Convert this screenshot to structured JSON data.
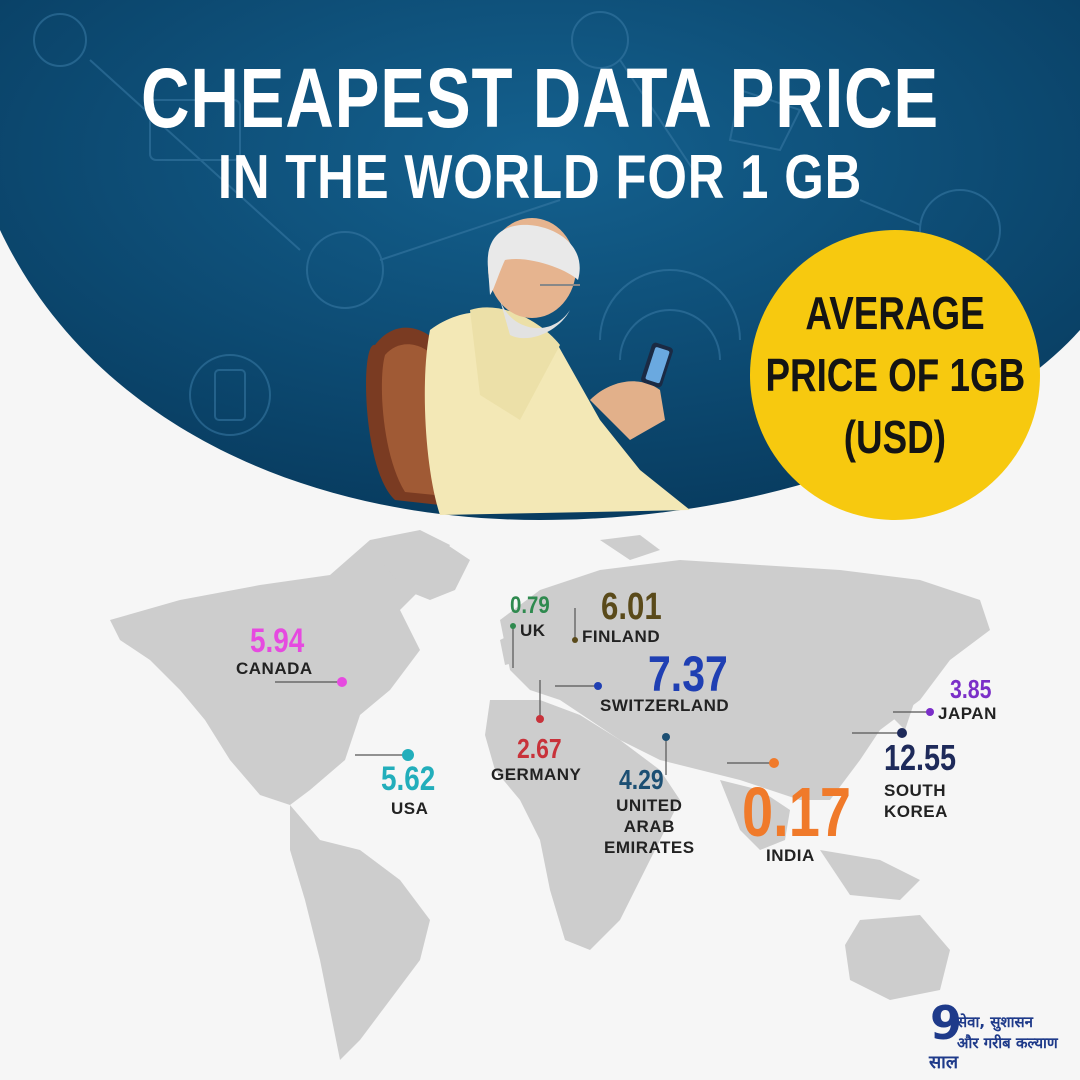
{
  "title": {
    "line1": "CHEAPEST DATA PRICE",
    "line2": "IN THE WORLD FOR 1 GB"
  },
  "badge": {
    "line1": "AVERAGE",
    "line2": "PRICE OF 1GB",
    "line3": "(USD)"
  },
  "colors": {
    "header_bg": "#0b4a72",
    "badge": "#f7c90f",
    "map": "#cfcfcf"
  },
  "countries": [
    {
      "id": "uk",
      "value": "0.79",
      "name": "UK",
      "color": "#2f8a4f"
    },
    {
      "id": "finland",
      "value": "6.01",
      "name": "FINLAND",
      "color": "#5a4a1a"
    },
    {
      "id": "canada",
      "value": "5.94",
      "name": "CANADA",
      "color": "#e64ae0"
    },
    {
      "id": "switzerland",
      "value": "7.37",
      "name": "SWITZERLAND",
      "color": "#1f3fb3"
    },
    {
      "id": "japan",
      "value": "3.85",
      "name": "JAPAN",
      "color": "#7b2fc8"
    },
    {
      "id": "germany",
      "value": "2.67",
      "name": "GERMANY",
      "color": "#c8323a"
    },
    {
      "id": "usa",
      "value": "5.62",
      "name": "USA",
      "color": "#22aebb"
    },
    {
      "id": "uae",
      "value": "4.29",
      "name": "UNITED ARAB EMIRATES",
      "name_lines": [
        "UNITED",
        "ARAB",
        "EMIRATES"
      ],
      "color": "#1c4f73"
    },
    {
      "id": "india",
      "value": "0.17",
      "name": "INDIA",
      "color": "#f07a2a"
    },
    {
      "id": "south_korea",
      "value": "12.55",
      "name": "SOUTH KOREA",
      "name_lines": [
        "SOUTH",
        "KOREA"
      ],
      "color": "#1e2a5a"
    }
  ],
  "logo": {
    "number": "9",
    "word": "साल",
    "tagline1": "सेवा, सुशासन",
    "tagline2": "और गरीब कल्याण"
  }
}
